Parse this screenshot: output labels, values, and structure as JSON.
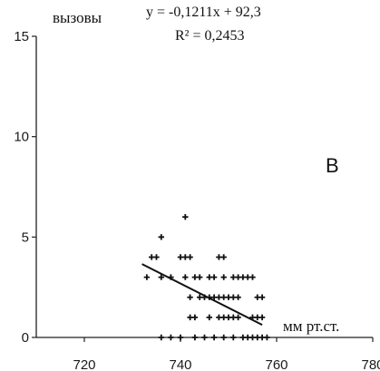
{
  "chart_data": {
    "type": "scatter",
    "ylabel": "вызовы",
    "xlabel": "мм рт.ст.",
    "panel_label": "B",
    "trendline": {
      "equation": "y = -0,1211x  + 92,3",
      "r_squared": "R² = 0,2453",
      "slope": -0.1211,
      "intercept": 92.3,
      "x_range": [
        732,
        757
      ]
    },
    "xlim": [
      710,
      780
    ],
    "ylim": [
      0,
      15
    ],
    "x_ticks": [
      720,
      740,
      760,
      780
    ],
    "x_tick_labels": [
      "720",
      "740",
      "760",
      "780"
    ],
    "y_ticks": [
      0,
      5,
      10,
      15
    ],
    "y_tick_labels": [
      "0",
      "5",
      "10",
      "15"
    ],
    "points": [
      {
        "x": 736,
        "y": 5
      },
      {
        "x": 741,
        "y": 6
      },
      {
        "x": 734,
        "y": 4
      },
      {
        "x": 735,
        "y": 4
      },
      {
        "x": 740,
        "y": 4
      },
      {
        "x": 741,
        "y": 4
      },
      {
        "x": 742,
        "y": 4
      },
      {
        "x": 748,
        "y": 4
      },
      {
        "x": 749,
        "y": 4
      },
      {
        "x": 733,
        "y": 3
      },
      {
        "x": 736,
        "y": 3
      },
      {
        "x": 738,
        "y": 3
      },
      {
        "x": 741,
        "y": 3
      },
      {
        "x": 743,
        "y": 3
      },
      {
        "x": 744,
        "y": 3
      },
      {
        "x": 746,
        "y": 3
      },
      {
        "x": 747,
        "y": 3
      },
      {
        "x": 749,
        "y": 3
      },
      {
        "x": 751,
        "y": 3
      },
      {
        "x": 752,
        "y": 3
      },
      {
        "x": 753,
        "y": 3
      },
      {
        "x": 754,
        "y": 3
      },
      {
        "x": 755,
        "y": 3
      },
      {
        "x": 742,
        "y": 2
      },
      {
        "x": 744,
        "y": 2
      },
      {
        "x": 745,
        "y": 2
      },
      {
        "x": 746,
        "y": 2
      },
      {
        "x": 747,
        "y": 2
      },
      {
        "x": 748,
        "y": 2
      },
      {
        "x": 749,
        "y": 2
      },
      {
        "x": 750,
        "y": 2
      },
      {
        "x": 751,
        "y": 2
      },
      {
        "x": 752,
        "y": 2
      },
      {
        "x": 756,
        "y": 2
      },
      {
        "x": 757,
        "y": 2
      },
      {
        "x": 742,
        "y": 1
      },
      {
        "x": 743,
        "y": 1
      },
      {
        "x": 746,
        "y": 1
      },
      {
        "x": 748,
        "y": 1
      },
      {
        "x": 749,
        "y": 1
      },
      {
        "x": 750,
        "y": 1
      },
      {
        "x": 751,
        "y": 1
      },
      {
        "x": 752,
        "y": 1
      },
      {
        "x": 755,
        "y": 1
      },
      {
        "x": 756,
        "y": 1
      },
      {
        "x": 757,
        "y": 1
      },
      {
        "x": 736,
        "y": 0
      },
      {
        "x": 738,
        "y": 0
      },
      {
        "x": 740,
        "y": 0
      },
      {
        "x": 743,
        "y": 0
      },
      {
        "x": 745,
        "y": 0
      },
      {
        "x": 747,
        "y": 0
      },
      {
        "x": 749,
        "y": 0
      },
      {
        "x": 751,
        "y": 0
      },
      {
        "x": 753,
        "y": 0
      },
      {
        "x": 754,
        "y": 0
      },
      {
        "x": 755,
        "y": 0
      },
      {
        "x": 756,
        "y": 0
      },
      {
        "x": 757,
        "y": 0
      },
      {
        "x": 758,
        "y": 0
      }
    ],
    "grid": false,
    "legend": "none",
    "colors": {
      "points": "#111111",
      "trendline": "#111111",
      "axis": "#222222"
    }
  }
}
